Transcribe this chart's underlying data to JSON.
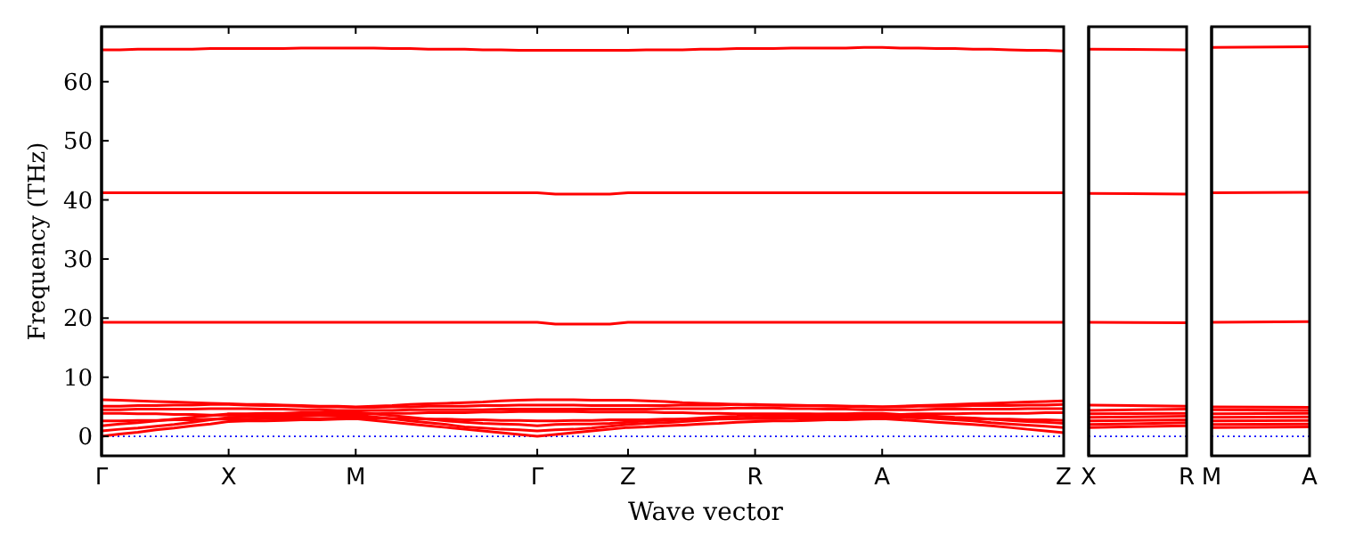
{
  "chart_data": [
    {
      "type": "line",
      "ylabel": "Frequency (THz)",
      "xlabel": "Wave vector",
      "ylim": [
        -3.3,
        69.3
      ],
      "yticks": [
        0,
        10,
        20,
        30,
        40,
        50,
        60
      ],
      "categories": [
        "Γ",
        null,
        null,
        null,
        null,
        null,
        null,
        "X",
        null,
        null,
        null,
        null,
        null,
        null,
        "M",
        null,
        null,
        null,
        null,
        null,
        null,
        null,
        null,
        null,
        "Γ",
        null,
        null,
        null,
        null,
        "Z",
        null,
        null,
        null,
        null,
        null,
        null,
        "R",
        null,
        null,
        null,
        null,
        null,
        null,
        "A",
        null,
        null,
        null,
        null,
        null,
        null,
        null,
        null,
        null,
        "Z"
      ],
      "ref_lines": [
        {
          "axis": "y",
          "value": 0,
          "color": "#0000ff",
          "line_style": "dotted"
        }
      ],
      "series": [
        {
          "color": "#ff0000",
          "values": [
            0,
            0.4,
            0.7,
            1.1,
            1.4,
            1.8,
            2.1,
            2.5,
            2.6,
            2.6,
            2.7,
            2.8,
            2.8,
            2.9,
            3,
            2.7,
            2.4,
            2.1,
            1.8,
            1.5,
            1.2,
            0.9,
            0.6,
            0.3,
            0,
            0.3,
            0.6,
            0.9,
            1.2,
            1.5,
            1.6,
            1.8,
            1.9,
            2.1,
            2.2,
            2.4,
            2.5,
            2.6,
            2.6,
            2.7,
            2.8,
            2.8,
            2.9,
            3,
            2.8,
            2.6,
            2.4,
            2.2,
            2,
            1.8,
            1.5,
            1.2,
            0.9,
            0.6
          ]
        },
        {
          "color": "#ff0000",
          "values": [
            0.9,
            1.2,
            1.4,
            1.7,
            2,
            2.4,
            2.8,
            3.2,
            3.3,
            3.3,
            3.4,
            3.4,
            3.5,
            3.5,
            3.6,
            3.3,
            3,
            2.6,
            2.3,
            2,
            1.6,
            1.4,
            1.2,
            1.1,
            0.9,
            1.1,
            1.2,
            1.4,
            1.7,
            2,
            2.2,
            2.3,
            2.5,
            2.7,
            2.9,
            3,
            3.2,
            3.3,
            3.3,
            3.4,
            3.4,
            3.5,
            3.5,
            3.6,
            3.4,
            3.2,
            3,
            2.8,
            2.6,
            2.3,
            2.1,
            1.9,
            1.7,
            1.5
          ]
        },
        {
          "color": "#ff0000",
          "values": [
            1.8,
            2.1,
            2.3,
            2.6,
            2.9,
            3.2,
            3.5,
            3.8,
            3.8,
            3.9,
            3.9,
            4,
            4,
            4.1,
            4.1,
            3.8,
            3.5,
            3.2,
            2.9,
            2.6,
            2.4,
            2.2,
            2.1,
            2,
            1.8,
            2,
            2.1,
            2.1,
            2.2,
            2.4,
            2.6,
            2.7,
            2.9,
            3.1,
            3.3,
            3.4,
            3.6,
            3.6,
            3.7,
            3.7,
            3.8,
            3.8,
            3.9,
            3.9,
            3.7,
            3.5,
            3.4,
            3.2,
            3.1,
            2.9,
            2.7,
            2.5,
            2.4,
            2.2
          ]
        },
        {
          "color": "#ff0000",
          "values": [
            2.6,
            2.6,
            2.7,
            2.7,
            2.8,
            2.8,
            2.9,
            2.9,
            2.9,
            3,
            3,
            3,
            3,
            3.1,
            3.1,
            3.1,
            3,
            3,
            2.9,
            2.9,
            2.8,
            2.8,
            2.7,
            2.7,
            2.6,
            2.6,
            2.7,
            2.7,
            2.8,
            2.8,
            2.8,
            2.9,
            2.9,
            2.9,
            3,
            3,
            3,
            3,
            3.1,
            3.1,
            3.1,
            3.2,
            3.2,
            3.2,
            3.2,
            3.1,
            3.1,
            3,
            3,
            2.9,
            2.9,
            2.8,
            2.8,
            2.7
          ]
        },
        {
          "color": "#ff0000",
          "values": [
            3.9,
            3.9,
            3.8,
            3.8,
            3.7,
            3.7,
            3.6,
            3.6,
            3.6,
            3.7,
            3.7,
            3.7,
            3.7,
            3.8,
            3.8,
            3.8,
            3.9,
            3.9,
            4,
            4,
            4,
            4.1,
            4.1,
            4.2,
            4.2,
            4.2,
            4.2,
            4.1,
            4.1,
            4.1,
            4.1,
            4,
            4,
            3.9,
            3.9,
            3.8,
            3.8,
            3.8,
            3.8,
            3.8,
            3.7,
            3.7,
            3.7,
            3.7,
            3.7,
            3.8,
            3.8,
            3.8,
            3.9,
            3.9,
            3.9,
            3.9,
            4,
            4
          ]
        },
        {
          "color": "#ff0000",
          "values": [
            4.5,
            4.5,
            4.6,
            4.6,
            4.6,
            4.6,
            4.7,
            4.7,
            4.7,
            4.6,
            4.6,
            4.5,
            4.5,
            4.4,
            4.4,
            4.4,
            4.4,
            4.5,
            4.5,
            4.5,
            4.5,
            4.5,
            4.6,
            4.6,
            4.6,
            4.6,
            4.6,
            4.6,
            4.6,
            4.6,
            4.6,
            4.7,
            4.7,
            4.7,
            4.7,
            4.8,
            4.8,
            4.8,
            4.7,
            4.7,
            4.6,
            4.6,
            4.5,
            4.5,
            4.5,
            4.5,
            4.6,
            4.6,
            4.6,
            4.6,
            4.6,
            4.7,
            4.7,
            4.7
          ]
        },
        {
          "color": "#ff0000",
          "values": [
            5.1,
            5.1,
            5.2,
            5.2,
            5.3,
            5.3,
            5.4,
            5.4,
            5.3,
            5.2,
            5.2,
            5.1,
            5,
            5,
            4.9,
            4.9,
            5,
            5,
            5.1,
            5.1,
            5.1,
            5.2,
            5.2,
            5.3,
            5.3,
            5.3,
            5.3,
            5.2,
            5.2,
            5.2,
            5.2,
            5.2,
            5.3,
            5.3,
            5.3,
            5.4,
            5.4,
            5.3,
            5.3,
            5.2,
            5.2,
            5.1,
            5.1,
            5,
            5,
            5.1,
            5.1,
            5.1,
            5.2,
            5.2,
            5.2,
            5.3,
            5.3,
            5.4
          ]
        },
        {
          "color": "#ff0000",
          "values": [
            6.2,
            6.1,
            6,
            5.9,
            5.8,
            5.7,
            5.6,
            5.5,
            5.4,
            5.4,
            5.3,
            5.2,
            5.1,
            5.1,
            5,
            5.1,
            5.2,
            5.4,
            5.5,
            5.6,
            5.7,
            5.8,
            6,
            6.1,
            6.2,
            6.2,
            6.2,
            6.1,
            6.1,
            6.1,
            6,
            5.9,
            5.7,
            5.6,
            5.5,
            5.4,
            5.3,
            5.3,
            5.2,
            5.2,
            5.1,
            5.1,
            5,
            5,
            5.1,
            5.2,
            5.3,
            5.4,
            5.5,
            5.6,
            5.7,
            5.8,
            5.9,
            6
          ]
        },
        {
          "color": "#ff0000",
          "values": [
            19.3,
            19.3,
            19.3,
            19.3,
            19.3,
            19.3,
            19.3,
            19.3,
            19.3,
            19.3,
            19.3,
            19.3,
            19.3,
            19.3,
            19.3,
            19.3,
            19.3,
            19.3,
            19.3,
            19.3,
            19.3,
            19.3,
            19.3,
            19.3,
            19.3,
            19,
            19,
            19,
            19,
            19.3,
            19.3,
            19.3,
            19.3,
            19.3,
            19.3,
            19.3,
            19.3,
            19.3,
            19.3,
            19.3,
            19.3,
            19.3,
            19.3,
            19.3,
            19.3,
            19.3,
            19.3,
            19.3,
            19.3,
            19.3,
            19.3,
            19.3,
            19.3,
            19.3
          ]
        },
        {
          "color": "#ff0000",
          "values": [
            41.2,
            41.2,
            41.2,
            41.2,
            41.2,
            41.2,
            41.2,
            41.2,
            41.2,
            41.2,
            41.2,
            41.2,
            41.2,
            41.2,
            41.2,
            41.2,
            41.2,
            41.2,
            41.2,
            41.2,
            41.2,
            41.2,
            41.2,
            41.2,
            41.2,
            41,
            41,
            41,
            41,
            41.2,
            41.2,
            41.2,
            41.2,
            41.2,
            41.2,
            41.2,
            41.2,
            41.2,
            41.2,
            41.2,
            41.2,
            41.2,
            41.2,
            41.2,
            41.2,
            41.2,
            41.2,
            41.2,
            41.2,
            41.2,
            41.2,
            41.2,
            41.2,
            41.2
          ]
        },
        {
          "color": "#ff0000",
          "values": [
            65.4,
            65.4,
            65.5,
            65.5,
            65.5,
            65.5,
            65.6,
            65.6,
            65.6,
            65.6,
            65.6,
            65.7,
            65.7,
            65.7,
            65.7,
            65.7,
            65.6,
            65.6,
            65.5,
            65.5,
            65.5,
            65.4,
            65.4,
            65.3,
            65.3,
            65.3,
            65.3,
            65.3,
            65.3,
            65.3,
            65.4,
            65.4,
            65.4,
            65.5,
            65.5,
            65.6,
            65.6,
            65.6,
            65.7,
            65.7,
            65.7,
            65.7,
            65.8,
            65.8,
            65.7,
            65.7,
            65.6,
            65.6,
            65.5,
            65.5,
            65.4,
            65.3,
            65.3,
            65.2
          ]
        }
      ]
    },
    {
      "type": "line",
      "ylim": [
        -3.3,
        69.3
      ],
      "tick_labels": "x",
      "categories": [
        "X",
        "R"
      ],
      "ref_lines": [
        {
          "axis": "y",
          "value": 0,
          "color": "#0000ff",
          "line_style": "dotted"
        }
      ],
      "series": [
        {
          "color": "#ff0000",
          "values": [
            1.5,
            1.8
          ]
        },
        {
          "color": "#ff0000",
          "values": [
            2,
            2.3
          ]
        },
        {
          "color": "#ff0000",
          "values": [
            2.6,
            2.8
          ]
        },
        {
          "color": "#ff0000",
          "values": [
            3.2,
            3.4
          ]
        },
        {
          "color": "#ff0000",
          "values": [
            3.8,
            3.9
          ]
        },
        {
          "color": "#ff0000",
          "values": [
            4.4,
            4.6
          ]
        },
        {
          "color": "#ff0000",
          "values": [
            5.3,
            5.1
          ]
        },
        {
          "color": "#ff0000",
          "values": [
            19.3,
            19.2
          ]
        },
        {
          "color": "#ff0000",
          "values": [
            41.1,
            41
          ]
        },
        {
          "color": "#ff0000",
          "values": [
            65.5,
            65.4
          ]
        }
      ]
    },
    {
      "type": "line",
      "ylim": [
        -3.3,
        69.3
      ],
      "tick_labels": "x",
      "categories": [
        "M",
        "A"
      ],
      "ref_lines": [
        {
          "axis": "y",
          "value": 0,
          "color": "#0000ff",
          "line_style": "dotted"
        }
      ],
      "series": [
        {
          "color": "#ff0000",
          "values": [
            1.5,
            1.6
          ]
        },
        {
          "color": "#ff0000",
          "values": [
            2,
            2.1
          ]
        },
        {
          "color": "#ff0000",
          "values": [
            2.6,
            2.7
          ]
        },
        {
          "color": "#ff0000",
          "values": [
            3.2,
            3.3
          ]
        },
        {
          "color": "#ff0000",
          "values": [
            3.8,
            3.9
          ]
        },
        {
          "color": "#ff0000",
          "values": [
            4.5,
            4.4
          ]
        },
        {
          "color": "#ff0000",
          "values": [
            5,
            4.9
          ]
        },
        {
          "color": "#ff0000",
          "values": [
            19.3,
            19.4
          ]
        },
        {
          "color": "#ff0000",
          "values": [
            41.2,
            41.3
          ]
        },
        {
          "color": "#ff0000",
          "values": [
            65.8,
            65.9
          ]
        }
      ]
    }
  ]
}
